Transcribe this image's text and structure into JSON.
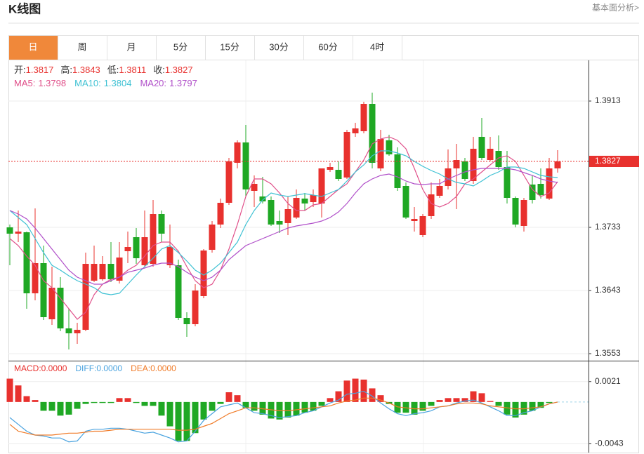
{
  "header": {
    "title": "K线图",
    "link": "基本面分析>"
  },
  "tabs": [
    "日",
    "周",
    "月",
    "5分",
    "15分",
    "30分",
    "60分",
    "4时"
  ],
  "active_tab": 0,
  "chart_data": [
    {
      "type": "candlestick",
      "up_color": "#e8312e",
      "down_color": "#1fa824",
      "ohlc_labels": [
        "开:",
        "高:",
        "低:",
        "收:"
      ],
      "open": [
        1.3733,
        1.3724,
        1.3726,
        1.3639,
        1.3682,
        1.3602,
        1.3647,
        1.3589,
        1.3582,
        1.3587,
        1.3657,
        1.3659,
        1.3681,
        1.3657,
        1.3699,
        1.3719,
        1.3679,
        1.3681,
        1.3752,
        1.3679,
        1.3679,
        1.3604,
        1.3595,
        1.3635,
        1.3701,
        1.3737,
        1.3768,
        1.3825,
        1.3854,
        1.3785,
        1.3777,
        1.3772,
        1.3742,
        1.3739,
        1.3747,
        1.3774,
        1.3769,
        1.3767,
        1.3815,
        1.3815,
        1.3804,
        1.3867,
        1.387,
        1.3909,
        1.3817,
        1.3857,
        1.3837,
        1.3792,
        1.3742,
        1.3722,
        1.3749,
        1.3778,
        1.3792,
        1.3817,
        1.3827,
        1.3799,
        1.3862,
        1.3829,
        1.3842,
        1.3819,
        1.3775,
        1.3735,
        1.3794,
        1.3795,
        1.3774,
        1.3817
      ],
      "high": [
        1.3737,
        1.3757,
        1.3727,
        1.376,
        1.3707,
        1.3677,
        1.3662,
        1.3617,
        1.3597,
        1.3697,
        1.3707,
        1.3692,
        1.3712,
        1.3712,
        1.3727,
        1.3732,
        1.3757,
        1.3772,
        1.3757,
        1.3737,
        1.3687,
        1.3612,
        1.3652,
        1.3702,
        1.3742,
        1.3774,
        1.3832,
        1.3857,
        1.3879,
        1.3807,
        1.3805,
        1.3777,
        1.3757,
        1.3777,
        1.3787,
        1.3782,
        1.3787,
        1.3817,
        1.3825,
        1.3827,
        1.3872,
        1.3882,
        1.3912,
        1.3925,
        1.3872,
        1.3865,
        1.3847,
        1.3797,
        1.3762,
        1.3752,
        1.3797,
        1.3802,
        1.3844,
        1.3852,
        1.3832,
        1.3862,
        1.3889,
        1.3862,
        1.3864,
        1.3842,
        1.3777,
        1.3775,
        1.3807,
        1.3817,
        1.3832,
        1.3843
      ],
      "low": [
        1.3679,
        1.3712,
        1.3617,
        1.3629,
        1.3601,
        1.3594,
        1.3585,
        1.3559,
        1.3567,
        1.3585,
        1.3655,
        1.3657,
        1.3655,
        1.3653,
        1.3682,
        1.3681,
        1.3677,
        1.3677,
        1.3712,
        1.3675,
        1.3601,
        1.3577,
        1.3592,
        1.3632,
        1.3697,
        1.3732,
        1.3765,
        1.3817,
        1.3777,
        1.3762,
        1.3767,
        1.3735,
        1.3725,
        1.3722,
        1.3745,
        1.3757,
        1.3762,
        1.3747,
        1.3812,
        1.3799,
        1.3802,
        1.3862,
        1.3867,
        1.3817,
        1.3813,
        1.3835,
        1.3785,
        1.3745,
        1.3727,
        1.3719,
        1.3745,
        1.3775,
        1.3787,
        1.3759,
        1.3799,
        1.3795,
        1.3829,
        1.3827,
        1.3815,
        1.3767,
        1.3733,
        1.3727,
        1.3767,
        1.3774,
        1.3772,
        1.3811
      ],
      "close": [
        1.3724,
        1.3727,
        1.3639,
        1.3682,
        1.3605,
        1.3647,
        1.3589,
        1.3582,
        1.3587,
        1.3681,
        1.3681,
        1.3681,
        1.3659,
        1.369,
        1.3705,
        1.3689,
        1.3719,
        1.3752,
        1.3724,
        1.3705,
        1.3604,
        1.3595,
        1.3643,
        1.37,
        1.3737,
        1.3768,
        1.3827,
        1.3854,
        1.3787,
        1.3795,
        1.377,
        1.3737,
        1.3737,
        1.3759,
        1.3775,
        1.3767,
        1.3779,
        1.3817,
        1.3819,
        1.3802,
        1.3869,
        1.3874,
        1.3909,
        1.3825,
        1.3859,
        1.3837,
        1.3789,
        1.3747,
        1.3745,
        1.3749,
        1.378,
        1.3792,
        1.3817,
        1.3829,
        1.3802,
        1.3845,
        1.3832,
        1.3845,
        1.3819,
        1.3775,
        1.3737,
        1.3772,
        1.3772,
        1.3779,
        1.3817,
        1.3827
      ],
      "series": [
        {
          "name": "MA5:",
          "color": "#e0508a",
          "values": [
            1.3717,
            1.3707,
            1.3692,
            1.3679,
            1.3657,
            1.3647,
            1.3632,
            1.3617,
            1.3602,
            1.3612,
            1.3637,
            1.3652,
            1.3659,
            1.3662,
            1.3672,
            1.3679,
            1.3692,
            1.3707,
            1.3712,
            1.3712,
            1.3699,
            1.3677,
            1.3657,
            1.3647,
            1.3652,
            1.3672,
            1.3702,
            1.3737,
            1.3777,
            1.3802,
            1.3802,
            1.3795,
            1.3782,
            1.3767,
            1.3757,
            1.3757,
            1.3765,
            1.3767,
            1.3777,
            1.3787,
            1.3795,
            1.3812,
            1.3829,
            1.3852,
            1.3859,
            1.3862,
            1.3857,
            1.3845,
            1.3817,
            1.3787,
            1.3767,
            1.3762,
            1.3767,
            1.3777,
            1.3795,
            1.3802,
            1.3812,
            1.3822,
            1.3832,
            1.3835,
            1.3827,
            1.3807,
            1.3787,
            1.3777,
            1.3782,
            1.3798
          ]
        },
        {
          "name": "MA10:",
          "color": "#3ec1d3",
          "values": [
            1.3757,
            1.3747,
            1.3737,
            1.3717,
            1.3697,
            1.3679,
            1.3672,
            1.3664,
            1.3657,
            1.3652,
            1.3647,
            1.3639,
            1.3637,
            1.3639,
            1.3652,
            1.3665,
            1.3677,
            1.3689,
            1.3702,
            1.3707,
            1.3697,
            1.3685,
            1.3672,
            1.3665,
            1.3672,
            1.3682,
            1.3697,
            1.3712,
            1.3737,
            1.3757,
            1.3772,
            1.3782,
            1.3779,
            1.3777,
            1.3779,
            1.3781,
            1.3779,
            1.3777,
            1.3782,
            1.3787,
            1.3799,
            1.3812,
            1.3822,
            1.3835,
            1.3842,
            1.3842,
            1.3839,
            1.3835,
            1.3827,
            1.382,
            1.3814,
            1.3809,
            1.3802,
            1.3797,
            1.3795,
            1.3792,
            1.3799,
            1.3807,
            1.3812,
            1.3819,
            1.3819,
            1.3817,
            1.3812,
            1.3807,
            1.3805,
            1.3804
          ]
        },
        {
          "name": "MA20:",
          "color": "#b04fc9",
          "values": [
            1.3757,
            1.3752,
            1.3745,
            1.3732,
            1.3717,
            1.3702,
            1.3687,
            1.3672,
            1.3662,
            1.3657,
            1.3652,
            1.3652,
            1.3657,
            1.3662,
            1.3669,
            1.3672,
            1.3675,
            1.3679,
            1.3682,
            1.3682,
            1.3677,
            1.3669,
            1.3662,
            1.3657,
            1.3662,
            1.3672,
            1.3687,
            1.3697,
            1.3707,
            1.3712,
            1.3717,
            1.3722,
            1.3727,
            1.3732,
            1.3735,
            1.3737,
            1.3739,
            1.3742,
            1.3747,
            1.3755,
            1.3767,
            1.3782,
            1.3795,
            1.3802,
            1.3807,
            1.3809,
            1.3805,
            1.3799,
            1.3795,
            1.3794,
            1.3795,
            1.3795,
            1.3802,
            1.3807,
            1.3812,
            1.3815,
            1.3817,
            1.3817,
            1.3817,
            1.3817,
            1.3815,
            1.3811,
            1.3807,
            1.3802,
            1.3799,
            1.3797
          ]
        }
      ],
      "ylim": [
        1.3543,
        1.3971
      ],
      "yticks": [
        1.3553,
        1.3643,
        1.3733,
        1.3913
      ],
      "grid": true,
      "last_price_line": true
    },
    {
      "type": "macd",
      "ylim": [
        -0.0052,
        0.0041
      ],
      "yticks": [
        0.0021,
        -0.0043
      ],
      "series": [
        {
          "name": "MACD:",
          "kind": "bar",
          "color": "#e8312e",
          "up_color": "#e8312e",
          "down_color": "#1fa824",
          "legend_value_label": "0.0000",
          "values": [
            0.0024,
            0.0017,
            0.0006,
            0.0002,
            -0.0009,
            -0.0009,
            -0.0014,
            -0.0013,
            -0.0007,
            -0.0002,
            -0.0001,
            -0.0001,
            -0.0001,
            0.0004,
            0.0004,
            -0.0001,
            -0.0004,
            -0.0004,
            -0.0014,
            -0.0025,
            -0.004,
            -0.004,
            -0.0032,
            -0.0018,
            -0.0009,
            -0.0002,
            0.001,
            0.0007,
            -0.0006,
            -0.0009,
            -0.0013,
            -0.0017,
            -0.0018,
            -0.0016,
            -0.0014,
            -0.0011,
            -0.0009,
            -0.0004,
            0.0004,
            0.0011,
            0.0022,
            0.0024,
            0.0023,
            0.0014,
            0.0007,
            -0.0002,
            -0.0011,
            -0.0011,
            -0.0013,
            -0.0009,
            -0.0004,
            0.0002,
            0.0004,
            0.0004,
            0.0004,
            0.0011,
            0.0009,
            0.0001,
            -0.0004,
            -0.0013,
            -0.0016,
            -0.0013,
            -0.0009,
            -0.0006,
            -0.0001,
            0
          ]
        },
        {
          "name": "DIFF:",
          "kind": "line",
          "color": "#4aa3df",
          "legend_value_label": "0.0000",
          "values": [
            -0.0016,
            -0.0023,
            -0.003,
            -0.0034,
            -0.0035,
            -0.0037,
            -0.0037,
            -0.0041,
            -0.004,
            -0.003,
            -0.0028,
            -0.0028,
            -0.0027,
            -0.0027,
            -0.0028,
            -0.003,
            -0.0032,
            -0.0031,
            -0.0034,
            -0.0037,
            -0.0041,
            -0.004,
            -0.003,
            -0.0019,
            -0.0012,
            -0.0005,
            -0.0003,
            -0.0001,
            -0.0006,
            -0.0011,
            -0.0012,
            -0.0014,
            -0.0016,
            -0.0015,
            -0.0014,
            -0.0011,
            -0.0009,
            -0.0005,
            -0.0001,
            0.0002,
            0.0008,
            0.0009,
            0.0011,
            0.0006,
            -0.0001,
            -0.0007,
            -0.0012,
            -0.0014,
            -0.0012,
            -0.0011,
            -0.0009,
            -0.0005,
            -0.0004,
            -0.0001,
            0.0001,
            0.0002,
            -0.0001,
            -0.0005,
            -0.0009,
            -0.0014,
            -0.0014,
            -0.0011,
            -0.0009,
            -0.0005,
            -0.0002,
            0
          ]
        },
        {
          "name": "DEA:",
          "kind": "line",
          "color": "#f07b28",
          "legend_value_label": "0.0000",
          "values": [
            -0.0023,
            -0.003,
            -0.0032,
            -0.0034,
            -0.0034,
            -0.0034,
            -0.0033,
            -0.0032,
            -0.0032,
            -0.0031,
            -0.003,
            -0.003,
            -0.0029,
            -0.0028,
            -0.0028,
            -0.0028,
            -0.0028,
            -0.0028,
            -0.0028,
            -0.0028,
            -0.0029,
            -0.0029,
            -0.0028,
            -0.0025,
            -0.0022,
            -0.0017,
            -0.0012,
            -0.0009,
            -0.0006,
            -0.0006,
            -0.0007,
            -0.0008,
            -0.0009,
            -0.0009,
            -0.0008,
            -0.0007,
            -0.0006,
            -0.0005,
            -0.0004,
            -0.0001,
            0.0001,
            0.0002,
            0.0004,
            0.0004,
            0.0002,
            -0.0001,
            -0.0005,
            -0.0006,
            -0.0007,
            -0.0007,
            -0.0006,
            -0.0005,
            -0.0004,
            -0.0002,
            -0.0001,
            -0.0001,
            -0.0002,
            -0.0004,
            -0.0005,
            -0.0006,
            -0.0007,
            -0.0007,
            -0.0006,
            -0.0005,
            -0.0002,
            0
          ]
        }
      ]
    }
  ]
}
